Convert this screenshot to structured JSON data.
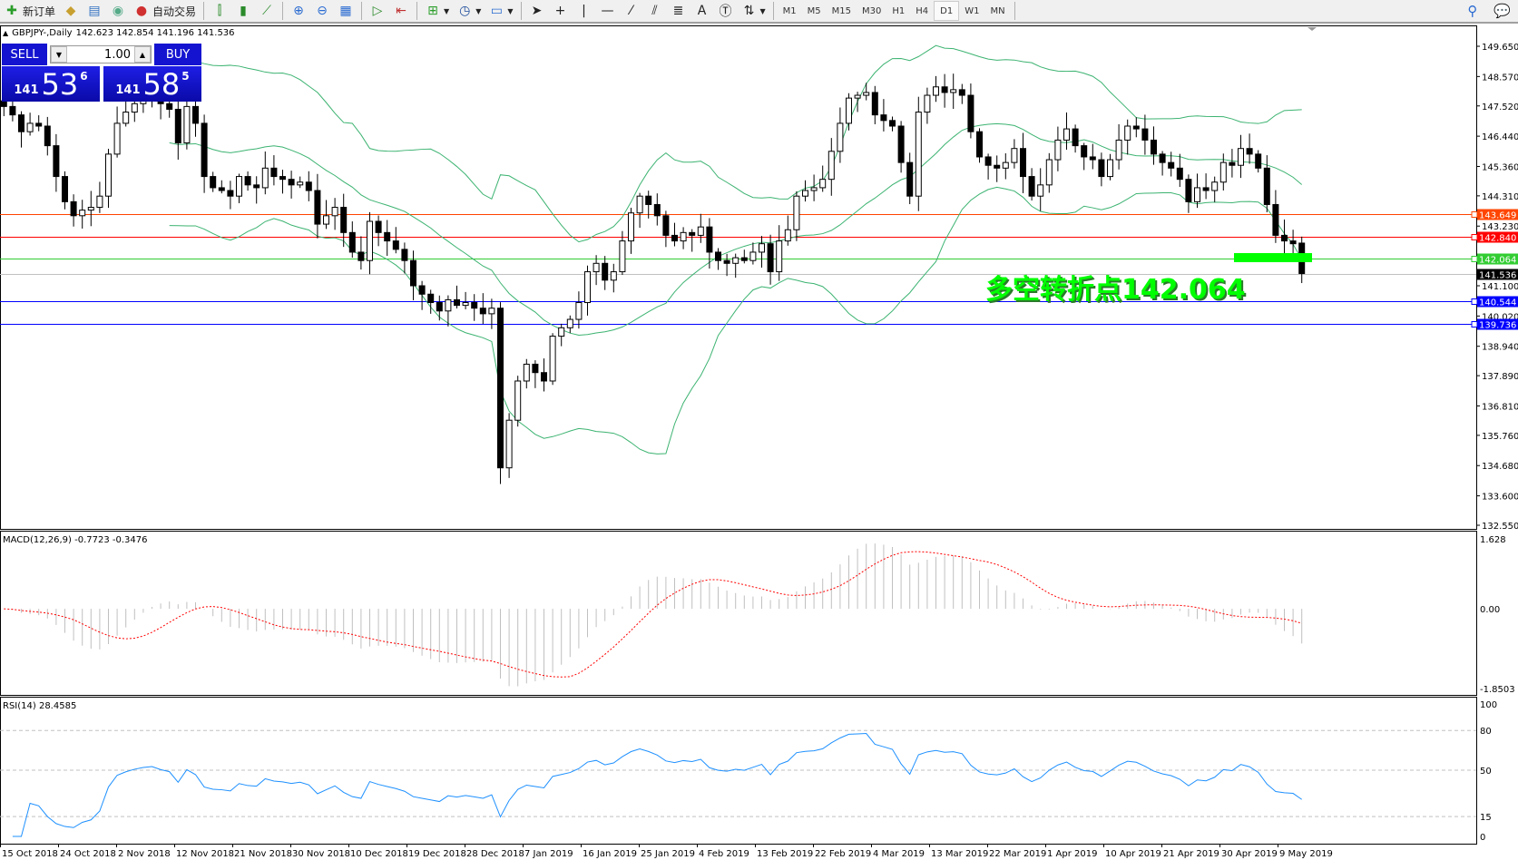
{
  "toolbar": {
    "new_order": "新订单",
    "auto_trading": "自动交易",
    "timeframes": [
      "M1",
      "M5",
      "M15",
      "M30",
      "H1",
      "H4",
      "D1",
      "W1",
      "MN"
    ],
    "active_timeframe": "D1"
  },
  "chart": {
    "symbol": "GBPJPY-,Daily",
    "ohlc": "142.623 142.854 141.196 141.536"
  },
  "one_click": {
    "sell_label": "SELL",
    "buy_label": "BUY",
    "lot": "1.00",
    "sell_big": "141",
    "sell_pips": "53",
    "sell_frac": "6",
    "buy_big": "141",
    "buy_pips": "58",
    "buy_frac": "5"
  },
  "annotation": "多空转折点142.064",
  "macd": {
    "label": "MACD(12,26,9) -0.7723 -0.3476",
    "scale": [
      "1.628",
      "0.00",
      "-1.8503"
    ],
    "max": 1.628,
    "min": -1.8503
  },
  "rsi": {
    "label": "RSI(14) 28.4585",
    "scale": [
      "100",
      "80",
      "50",
      "15",
      "0"
    ]
  },
  "dates": [
    "15 Oct 2018",
    "24 Oct 2018",
    "2 Nov 2018",
    "12 Nov 2018",
    "21 Nov 2018",
    "30 Nov 2018",
    "10 Dec 2018",
    "19 Dec 2018",
    "28 Dec 2018",
    "7 Jan 2019",
    "16 Jan 2019",
    "25 Jan 2019",
    "4 Feb 2019",
    "13 Feb 2019",
    "22 Feb 2019",
    "4 Mar 2019",
    "13 Mar 2019",
    "22 Mar 2019",
    "1 Apr 2019",
    "10 Apr 2019",
    "21 Apr 2019",
    "30 Apr 2019",
    "9 May 2019"
  ],
  "chart_data": {
    "type": "candlestick",
    "price_ticks": [
      "149.650",
      "148.570",
      "147.520",
      "146.440",
      "145.360",
      "144.310",
      "143.230",
      "141.100",
      "140.020",
      "138.940",
      "137.890",
      "136.810",
      "135.760",
      "134.680",
      "133.600",
      "132.550"
    ],
    "ylim": [
      132.55,
      149.65
    ],
    "levels": [
      {
        "price": "143.649",
        "color": "#ff4500"
      },
      {
        "price": "142.840",
        "color": "#ff0000"
      },
      {
        "price": "142.064",
        "color": "#32cd32"
      },
      {
        "price": "141.536",
        "color": "#000000",
        "line": "#c0c0c0"
      },
      {
        "price": "140.544",
        "color": "#0000ff"
      },
      {
        "price": "139.736",
        "color": "#0000ff"
      }
    ],
    "last_bar": {
      "open": 142.623,
      "high": 142.854,
      "low": 141.196,
      "close": 141.536
    },
    "closes": [
      147.5,
      147.2,
      146.6,
      146.9,
      146.8,
      146.1,
      145.0,
      144.1,
      143.6,
      143.8,
      143.9,
      144.3,
      145.8,
      146.9,
      147.3,
      147.6,
      147.8,
      147.9,
      147.6,
      147.4,
      146.2,
      147.5,
      146.9,
      145.0,
      144.6,
      144.5,
      144.3,
      145.0,
      144.7,
      144.6,
      145.3,
      145.0,
      144.9,
      144.7,
      144.8,
      144.5,
      143.3,
      143.6,
      143.9,
      143.0,
      142.3,
      142.0,
      143.4,
      143.0,
      142.7,
      142.4,
      142.0,
      141.1,
      140.8,
      140.5,
      140.2,
      140.6,
      140.4,
      140.5,
      140.3,
      140.1,
      140.3,
      134.6,
      136.3,
      137.7,
      138.3,
      138.0,
      137.7,
      139.3,
      139.6,
      139.9,
      140.5,
      141.6,
      141.9,
      141.3,
      141.6,
      142.7,
      143.7,
      144.3,
      144.0,
      143.6,
      142.9,
      142.7,
      143.0,
      142.9,
      143.2,
      142.3,
      142.0,
      141.9,
      142.1,
      142.0,
      142.3,
      142.6,
      141.6,
      142.7,
      143.1,
      144.3,
      144.5,
      144.6,
      144.9,
      145.9,
      146.9,
      147.8,
      147.9,
      148.0,
      147.2,
      147.0,
      146.8,
      145.5,
      144.3,
      147.3,
      147.9,
      148.2,
      148.0,
      148.1,
      147.9,
      146.6,
      145.7,
      145.4,
      145.3,
      145.5,
      146.0,
      145.0,
      144.3,
      144.7,
      145.6,
      146.3,
      146.7,
      146.1,
      145.7,
      145.6,
      145.0,
      145.6,
      146.3,
      146.8,
      146.7,
      146.3,
      145.8,
      145.5,
      145.3,
      144.9,
      144.1,
      144.6,
      144.5,
      144.8,
      145.5,
      145.4,
      146.0,
      145.8,
      145.3,
      144.0,
      142.9,
      142.7,
      142.6,
      141.536
    ],
    "colors": {
      "bands": "#3cb371",
      "macd_hist": "#c0c0c0",
      "macd_signal": "#ff0000",
      "rsi": "#1e90ff",
      "bull": "#ffffff",
      "bear": "#000000"
    }
  }
}
